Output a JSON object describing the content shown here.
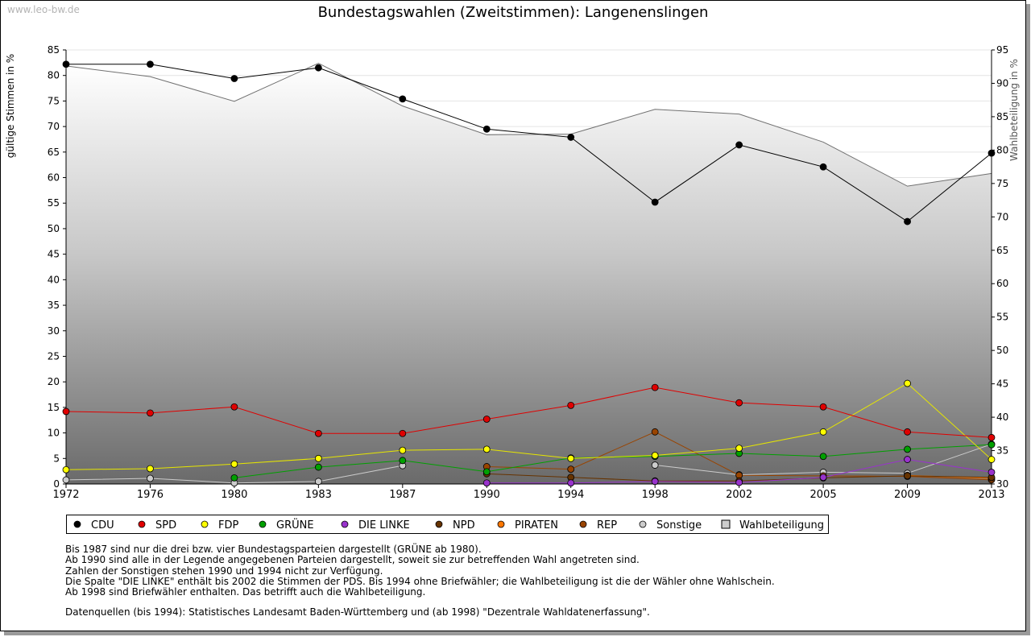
{
  "watermark": "www.leo-bw.de",
  "chart_data": {
    "type": "line",
    "title": "Bundestagswahlen (Zweitstimmen): Langenenslingen",
    "ylabel": "gültige Stimmen in %",
    "y2label": "Wahlbeteiligung in %",
    "ylim": [
      0,
      85
    ],
    "y2lim": [
      30,
      95
    ],
    "x": [
      "1972",
      "1976",
      "1980",
      "1983",
      "1987",
      "1990",
      "1994",
      "1998",
      "2002",
      "2005",
      "2009",
      "2013"
    ],
    "yticks": [
      "0",
      "5",
      "10",
      "15",
      "20",
      "25",
      "30",
      "35",
      "40",
      "45",
      "50",
      "55",
      "60",
      "65",
      "70",
      "75",
      "80",
      "85"
    ],
    "y2ticks": [
      "30",
      "35",
      "40",
      "45",
      "50",
      "55",
      "60",
      "65",
      "70",
      "75",
      "80",
      "85",
      "90",
      "95"
    ],
    "grid": true,
    "legend_position": "bottom",
    "series": [
      {
        "name": "CDU",
        "color": "#000000",
        "values": [
          82.2,
          82.2,
          79.4,
          81.5,
          75.4,
          69.5,
          67.9,
          55.2,
          66.4,
          62.1,
          51.4,
          64.8
        ]
      },
      {
        "name": "SPD",
        "color": "#e00000",
        "values": [
          14.2,
          13.9,
          15.1,
          9.9,
          9.9,
          12.7,
          15.4,
          18.9,
          15.9,
          15.1,
          10.2,
          9.1
        ]
      },
      {
        "name": "FDP",
        "color": "#ffff00",
        "values": [
          2.8,
          3.0,
          3.9,
          5.0,
          6.6,
          6.8,
          5.0,
          5.6,
          7.0,
          10.2,
          19.7,
          4.8
        ]
      },
      {
        "name": "GRÜNE",
        "color": "#00a000",
        "values": [
          null,
          null,
          1.2,
          3.3,
          4.6,
          2.4,
          5.1,
          5.4,
          6.0,
          5.4,
          6.8,
          7.7
        ]
      },
      {
        "name": "DIE LINKE",
        "color": "#9933cc",
        "values": [
          null,
          null,
          null,
          null,
          null,
          0.2,
          0.2,
          0.5,
          0.3,
          1.3,
          4.8,
          2.3
        ]
      },
      {
        "name": "NPD",
        "color": "#663300",
        "values": [
          null,
          null,
          null,
          null,
          null,
          2.0,
          1.3,
          0.6,
          0.6,
          1.2,
          1.6,
          1.3
        ]
      },
      {
        "name": "PIRATEN",
        "color": "#ff7700",
        "values": [
          null,
          null,
          null,
          null,
          null,
          null,
          null,
          null,
          null,
          null,
          1.7,
          1.1
        ]
      },
      {
        "name": "REP",
        "color": "#994400",
        "values": [
          null,
          null,
          null,
          null,
          null,
          3.4,
          2.9,
          10.2,
          1.7,
          1.6,
          1.5,
          0.8
        ]
      },
      {
        "name": "Sonstige",
        "color": "#cccccc",
        "values": [
          0.8,
          1.1,
          0.2,
          0.5,
          3.6,
          null,
          null,
          3.7,
          1.8,
          2.3,
          2.1,
          7.8
        ]
      }
    ],
    "turnout": {
      "name": "Wahlbeteiligung",
      "values": [
        92.6,
        91.0,
        87.3,
        93.0,
        86.6,
        82.3,
        82.4,
        86.1,
        85.4,
        81.2,
        74.6,
        76.5
      ]
    }
  },
  "notes": [
    "Bis 1987 sind nur die drei bzw. vier Bundestagsparteien dargestellt (GRÜNE ab 1980).",
    "Ab 1990 sind alle in der Legende angegebenen Parteien dargestellt, soweit sie zur betreffenden Wahl angetreten sind.",
    "Zahlen der Sonstigen stehen 1990 und 1994 nicht zur Verfügung.",
    "Die Spalte \"DIE LINKE\" enthält bis 2002 die Stimmen der PDS. Bis 1994 ohne Briefwähler; die Wahlbeteiligung ist die der Wähler ohne Wahlschein.",
    "Ab 1998 sind Briefwähler enthalten. Das betrifft auch die Wahlbeteiligung."
  ],
  "source": "Datenquellen (bis 1994): Statistisches Landesamt Baden-Württemberg und (ab 1998) \"Dezentrale Wahldatenerfassung\"."
}
